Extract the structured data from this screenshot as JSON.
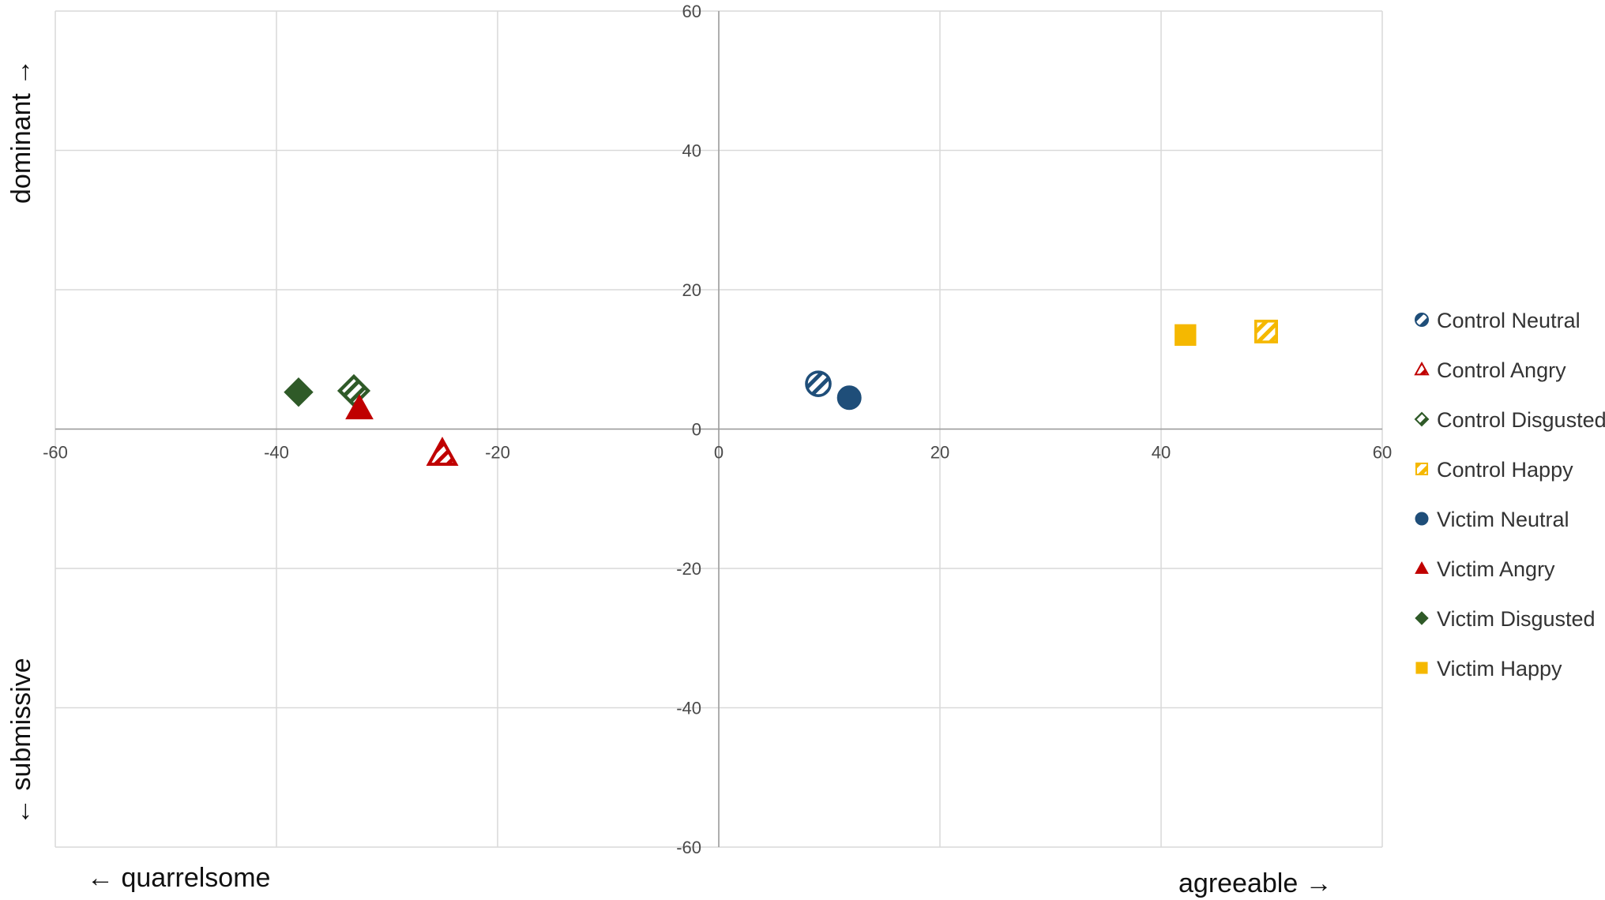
{
  "chart_data": {
    "type": "scatter",
    "title": "",
    "xlim": [
      -60,
      60
    ],
    "ylim": [
      -60,
      60
    ],
    "x_ticks": [
      -60,
      -40,
      -20,
      0,
      20,
      40,
      60
    ],
    "y_ticks": [
      -60,
      -40,
      -20,
      0,
      20,
      40,
      60
    ],
    "x_tick_labels": [
      "-60",
      "-40",
      "-20",
      "0",
      "20",
      "40",
      "60"
    ],
    "y_tick_labels": [
      "-60",
      "-40",
      "-20",
      "0",
      "20",
      "40",
      "60"
    ],
    "grid": true,
    "legend_position": "right",
    "axis_labels": {
      "x_negative": "← quarrelsome",
      "x_positive": "agreeable →",
      "y_positive": "dominant →",
      "y_negative": "← submissive"
    },
    "series": [
      {
        "name": "Control Neutral",
        "marker": "circle",
        "fill": "hatched",
        "color": "#1f4e79",
        "x": 9,
        "y": 6.5
      },
      {
        "name": "Control Angry",
        "marker": "triangle",
        "fill": "hatched",
        "color": "#c00000",
        "x": -25,
        "y": -3.5
      },
      {
        "name": "Control Disgusted",
        "marker": "diamond",
        "fill": "hatched",
        "color": "#2f5a28",
        "x": -33,
        "y": 5.5
      },
      {
        "name": "Control Happy",
        "marker": "square",
        "fill": "hatched",
        "color": "#f5b800",
        "x": 49.5,
        "y": 14
      },
      {
        "name": "Victim Neutral",
        "marker": "circle",
        "fill": "solid",
        "color": "#1f4e79",
        "x": 11.8,
        "y": 4.5
      },
      {
        "name": "Victim Angry",
        "marker": "triangle",
        "fill": "solid",
        "color": "#c00000",
        "x": -32.5,
        "y": 3
      },
      {
        "name": "Victim Disgusted",
        "marker": "diamond",
        "fill": "solid",
        "color": "#2f5a28",
        "x": -38,
        "y": 5.3
      },
      {
        "name": "Victim Happy",
        "marker": "square",
        "fill": "solid",
        "color": "#f5b800",
        "x": 42.2,
        "y": 13.5
      }
    ]
  }
}
